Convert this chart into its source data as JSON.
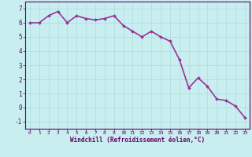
{
  "x": [
    0,
    1,
    2,
    3,
    4,
    5,
    6,
    7,
    8,
    9,
    10,
    11,
    12,
    13,
    14,
    15,
    16,
    17,
    18,
    19,
    20,
    21,
    22,
    23
  ],
  "y": [
    6.0,
    6.0,
    6.5,
    6.8,
    6.0,
    6.5,
    6.3,
    6.2,
    6.3,
    6.5,
    5.8,
    5.4,
    5.0,
    5.4,
    5.0,
    4.7,
    3.4,
    1.4,
    2.1,
    1.5,
    0.6,
    0.5,
    0.1,
    -0.7
  ],
  "line_color": "#993399",
  "marker": "D",
  "marker_size": 2.0,
  "background_color": "#c8eef0",
  "grid_color": "#aadddd",
  "xlabel": "Windchill (Refroidissement éolien,°C)",
  "xlabel_color": "#660066",
  "tick_color": "#660066",
  "ylim": [
    -1.5,
    7.5
  ],
  "xlim": [
    -0.5,
    23.5
  ],
  "yticks": [
    -1,
    0,
    1,
    2,
    3,
    4,
    5,
    6,
    7
  ],
  "xticks": [
    0,
    1,
    2,
    3,
    4,
    5,
    6,
    7,
    8,
    9,
    10,
    11,
    12,
    13,
    14,
    15,
    16,
    17,
    18,
    19,
    20,
    21,
    22,
    23
  ],
  "spine_color": "#660066",
  "linewidth": 1.2
}
